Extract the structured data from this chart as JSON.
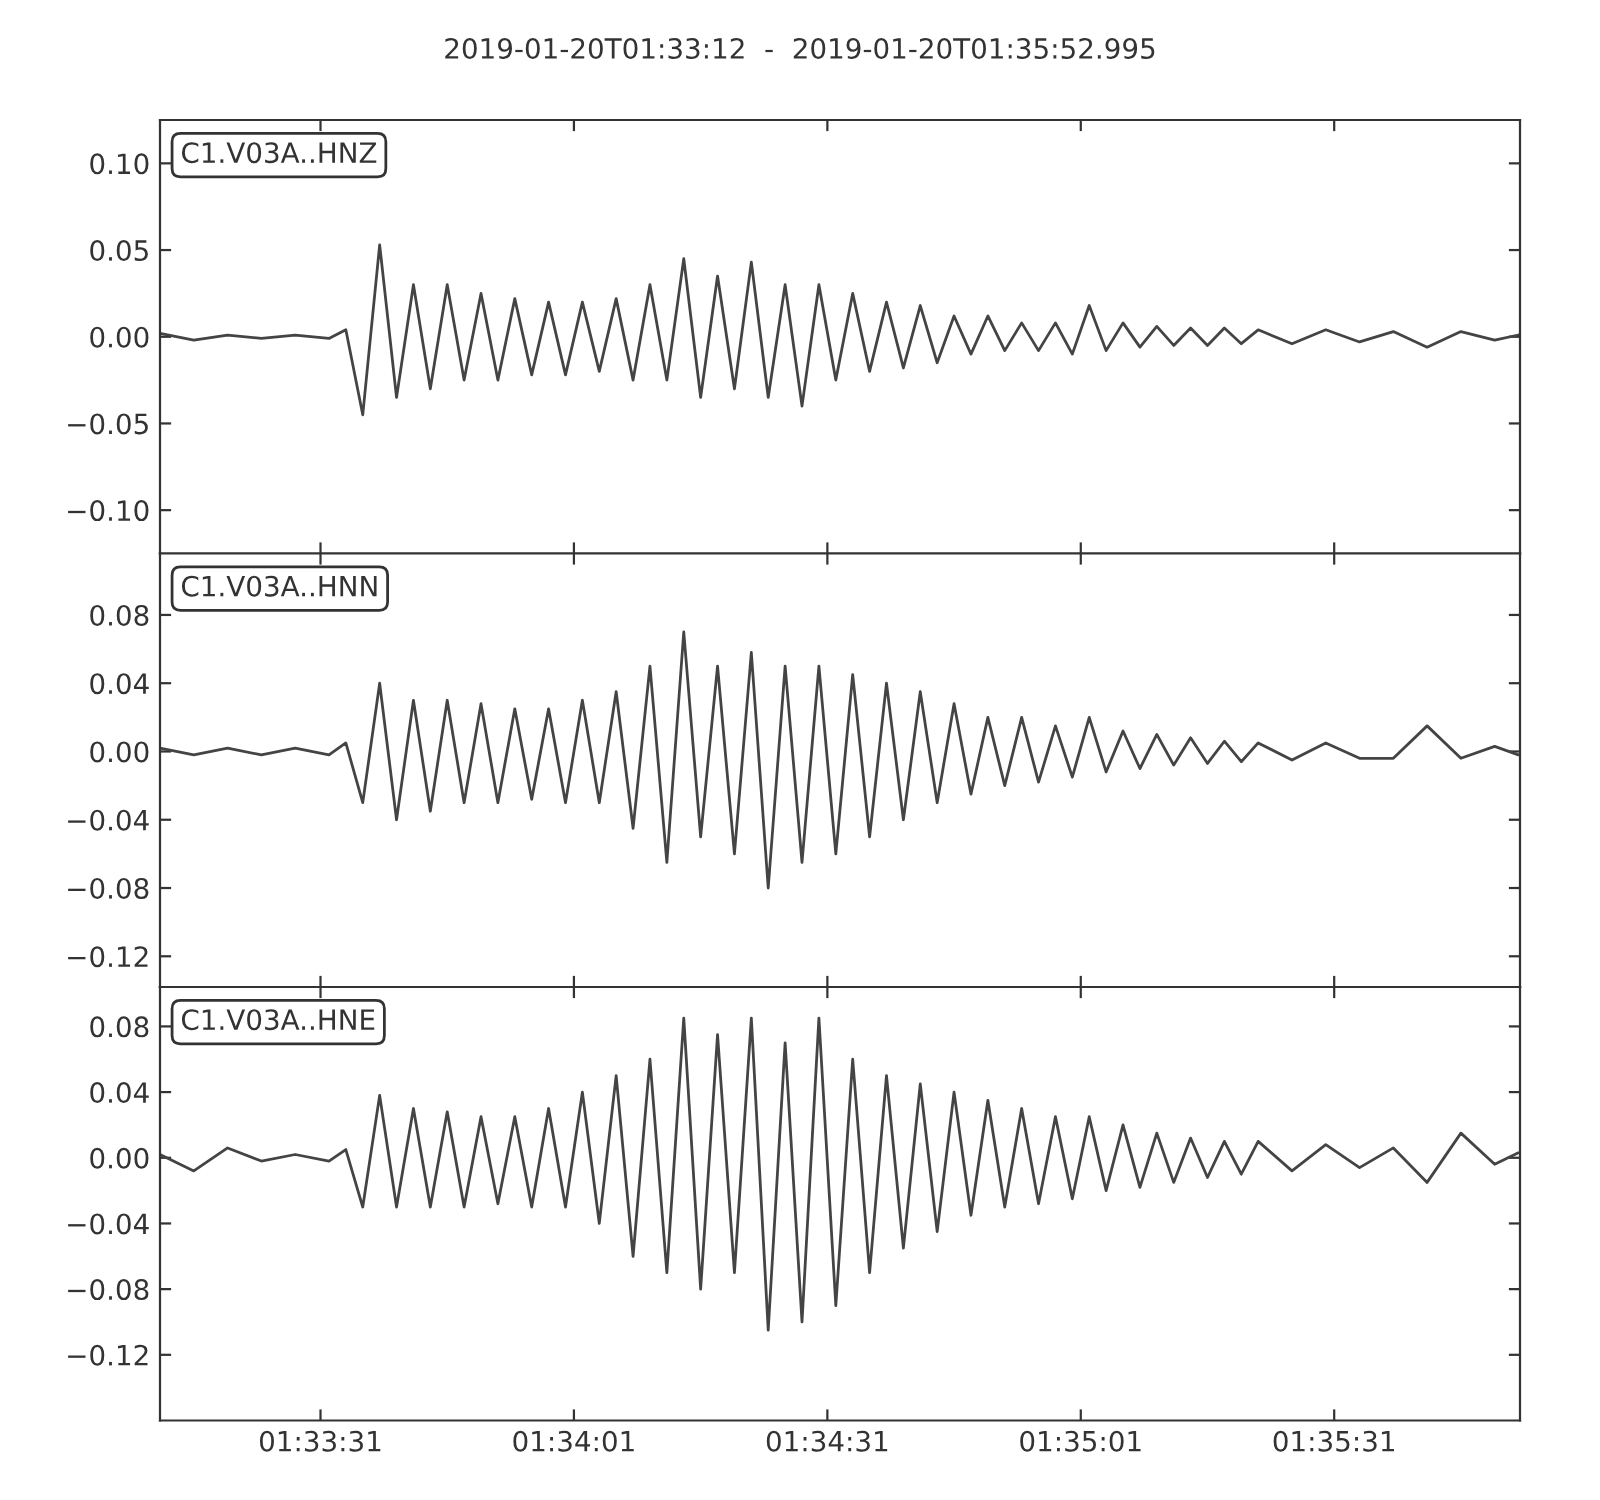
{
  "chart_data": [
    {
      "type": "line",
      "title": "2019-01-20T01:33:12  -  2019-01-20T01:35:52.995",
      "x": [
        1.553333,
        1.554444,
        1.555556,
        1.556667,
        1.557778,
        1.558889,
        1.559444,
        1.56,
        1.560556,
        1.561111,
        1.561667,
        1.562222,
        1.562778,
        1.563333,
        1.563889,
        1.564444,
        1.565,
        1.565556,
        1.566111,
        1.566667,
        1.567222,
        1.567778,
        1.568333,
        1.568889,
        1.569444,
        1.57,
        1.570556,
        1.571111,
        1.571667,
        1.572222,
        1.572778,
        1.573333,
        1.573889,
        1.574444,
        1.575,
        1.575556,
        1.576111,
        1.576667,
        1.577222,
        1.577778,
        1.578333,
        1.578889,
        1.579444,
        1.58,
        1.580556,
        1.581111,
        1.581667,
        1.582222,
        1.582778,
        1.583333,
        1.583889,
        1.584444,
        1.585,
        1.585556,
        1.586111,
        1.586667,
        1.587222,
        1.587778,
        1.588333,
        1.588889,
        1.589444,
        1.590556,
        1.591667,
        1.592778,
        1.593889,
        1.595,
        1.596111,
        1.597222,
        1.598
      ],
      "series": [
        {
          "name": "C1.V03A..HNZ",
          "color": "#444444",
          "values": [
            0.002,
            -0.002,
            0.001,
            -0.001,
            0.001,
            -0.001,
            0.004,
            -0.045,
            0.053,
            -0.035,
            0.03,
            -0.03,
            0.03,
            -0.025,
            0.025,
            -0.025,
            0.022,
            -0.022,
            0.02,
            -0.022,
            0.02,
            -0.02,
            0.022,
            -0.025,
            0.03,
            -0.025,
            0.045,
            -0.035,
            0.035,
            -0.03,
            0.043,
            -0.035,
            0.03,
            -0.04,
            0.03,
            -0.025,
            0.025,
            -0.02,
            0.02,
            -0.018,
            0.018,
            -0.015,
            0.012,
            -0.01,
            0.012,
            -0.008,
            0.008,
            -0.008,
            0.008,
            -0.01,
            0.018,
            -0.008,
            0.008,
            -0.006,
            0.006,
            -0.005,
            0.005,
            -0.005,
            0.005,
            -0.004,
            0.004,
            -0.004,
            0.004,
            -0.003,
            0.003,
            -0.006,
            0.003,
            -0.002,
            0.001
          ]
        }
      ],
      "xlim": [
        1.553333,
        1.598054
      ],
      "xticks": [
        {
          "value": 1.558611,
          "label": null
        },
        {
          "value": 1.566944,
          "label": null
        },
        {
          "value": 1.575278,
          "label": null
        },
        {
          "value": 1.583611,
          "label": null
        },
        {
          "value": 1.591944,
          "label": null
        }
      ],
      "ylim": [
        -0.125,
        0.125
      ],
      "yticks": [
        {
          "value": -0.1,
          "label": "−0.10"
        },
        {
          "value": -0.05,
          "label": "−0.05"
        },
        {
          "value": 0,
          "label": "0.00"
        },
        {
          "value": 0.05,
          "label": "0.05"
        },
        {
          "value": 0.1,
          "label": "0.10"
        }
      ],
      "tick_labels": "y",
      "grid": false,
      "legend": false,
      "line_style": "solid",
      "marker": "none"
    },
    {
      "type": "line",
      "x": [
        1.553333,
        1.554444,
        1.555556,
        1.556667,
        1.557778,
        1.558889,
        1.559444,
        1.56,
        1.560556,
        1.561111,
        1.561667,
        1.562222,
        1.562778,
        1.563333,
        1.563889,
        1.564444,
        1.565,
        1.565556,
        1.566111,
        1.566667,
        1.567222,
        1.567778,
        1.568333,
        1.568889,
        1.569444,
        1.57,
        1.570556,
        1.571111,
        1.571667,
        1.572222,
        1.572778,
        1.573333,
        1.573889,
        1.574444,
        1.575,
        1.575556,
        1.576111,
        1.576667,
        1.577222,
        1.577778,
        1.578333,
        1.578889,
        1.579444,
        1.58,
        1.580556,
        1.581111,
        1.581667,
        1.582222,
        1.582778,
        1.583333,
        1.583889,
        1.584444,
        1.585,
        1.585556,
        1.586111,
        1.586667,
        1.587222,
        1.587778,
        1.588333,
        1.588889,
        1.589444,
        1.590556,
        1.591667,
        1.592778,
        1.593889,
        1.595,
        1.596111,
        1.597222,
        1.598
      ],
      "series": [
        {
          "name": "C1.V03A..HNN",
          "color": "#444444",
          "values": [
            0.002,
            -0.002,
            0.002,
            -0.002,
            0.002,
            -0.002,
            0.005,
            -0.03,
            0.04,
            -0.04,
            0.03,
            -0.035,
            0.03,
            -0.03,
            0.028,
            -0.03,
            0.025,
            -0.028,
            0.025,
            -0.03,
            0.03,
            -0.03,
            0.035,
            -0.045,
            0.05,
            -0.065,
            0.07,
            -0.05,
            0.05,
            -0.06,
            0.058,
            -0.08,
            0.05,
            -0.065,
            0.05,
            -0.06,
            0.045,
            -0.05,
            0.04,
            -0.04,
            0.035,
            -0.03,
            0.028,
            -0.025,
            0.02,
            -0.02,
            0.02,
            -0.018,
            0.015,
            -0.015,
            0.02,
            -0.012,
            0.012,
            -0.01,
            0.01,
            -0.008,
            0.008,
            -0.007,
            0.006,
            -0.006,
            0.005,
            -0.005,
            0.005,
            -0.004,
            -0.004,
            0.015,
            -0.004,
            0.003,
            -0.002
          ]
        }
      ],
      "xlim": [
        1.553333,
        1.598054
      ],
      "xticks": [
        {
          "value": 1.558611,
          "label": null
        },
        {
          "value": 1.566944,
          "label": null
        },
        {
          "value": 1.575278,
          "label": null
        },
        {
          "value": 1.583611,
          "label": null
        },
        {
          "value": 1.591944,
          "label": null
        }
      ],
      "ylim": [
        -0.138,
        0.116
      ],
      "yticks": [
        {
          "value": -0.12,
          "label": "−0.12"
        },
        {
          "value": -0.08,
          "label": "−0.08"
        },
        {
          "value": -0.04,
          "label": "−0.04"
        },
        {
          "value": 0,
          "label": "0.00"
        },
        {
          "value": 0.04,
          "label": "0.04"
        },
        {
          "value": 0.08,
          "label": "0.08"
        }
      ],
      "tick_labels": "y",
      "grid": false,
      "legend": false,
      "line_style": "solid",
      "marker": "none"
    },
    {
      "type": "line",
      "x": [
        1.553333,
        1.554444,
        1.555556,
        1.556667,
        1.557778,
        1.558889,
        1.559444,
        1.56,
        1.560556,
        1.561111,
        1.561667,
        1.562222,
        1.562778,
        1.563333,
        1.563889,
        1.564444,
        1.565,
        1.565556,
        1.566111,
        1.566667,
        1.567222,
        1.567778,
        1.568333,
        1.568889,
        1.569444,
        1.57,
        1.570556,
        1.571111,
        1.571667,
        1.572222,
        1.572778,
        1.573333,
        1.573889,
        1.574444,
        1.575,
        1.575556,
        1.576111,
        1.576667,
        1.577222,
        1.577778,
        1.578333,
        1.578889,
        1.579444,
        1.58,
        1.580556,
        1.581111,
        1.581667,
        1.582222,
        1.582778,
        1.583333,
        1.583889,
        1.584444,
        1.585,
        1.585556,
        1.586111,
        1.586667,
        1.587222,
        1.587778,
        1.588333,
        1.588889,
        1.589444,
        1.590556,
        1.591667,
        1.592778,
        1.593889,
        1.595,
        1.596111,
        1.597222,
        1.598
      ],
      "series": [
        {
          "name": "C1.V03A..HNE",
          "color": "#444444",
          "values": [
            0.002,
            -0.008,
            0.006,
            -0.002,
            0.002,
            -0.002,
            0.005,
            -0.03,
            0.038,
            -0.03,
            0.03,
            -0.03,
            0.028,
            -0.03,
            0.025,
            -0.028,
            0.025,
            -0.03,
            0.03,
            -0.03,
            0.04,
            -0.04,
            0.05,
            -0.06,
            0.06,
            -0.07,
            0.085,
            -0.08,
            0.075,
            -0.07,
            0.085,
            -0.105,
            0.07,
            -0.1,
            0.085,
            -0.09,
            0.06,
            -0.07,
            0.05,
            -0.055,
            0.045,
            -0.045,
            0.04,
            -0.035,
            0.035,
            -0.03,
            0.03,
            -0.028,
            0.025,
            -0.025,
            0.025,
            -0.02,
            0.02,
            -0.018,
            0.015,
            -0.015,
            0.012,
            -0.012,
            0.01,
            -0.01,
            0.01,
            -0.008,
            0.008,
            -0.006,
            0.006,
            -0.015,
            0.015,
            -0.004,
            0.003
          ]
        }
      ],
      "xlim": [
        1.553333,
        1.598054
      ],
      "xticks": [
        {
          "value": 1.558611,
          "label": "01:33:31"
        },
        {
          "value": 1.566944,
          "label": "01:34:01"
        },
        {
          "value": 1.575278,
          "label": "01:34:31"
        },
        {
          "value": 1.583611,
          "label": "01:35:01"
        },
        {
          "value": 1.591944,
          "label": "01:35:31"
        }
      ],
      "ylim": [
        -0.16,
        0.104
      ],
      "yticks": [
        {
          "value": -0.12,
          "label": "−0.12"
        },
        {
          "value": -0.08,
          "label": "−0.08"
        },
        {
          "value": -0.04,
          "label": "−0.04"
        },
        {
          "value": 0,
          "label": "0.00"
        },
        {
          "value": 0.04,
          "label": "0.04"
        },
        {
          "value": 0.08,
          "label": "0.08"
        }
      ],
      "grid": false,
      "legend": false,
      "line_style": "solid",
      "marker": "none"
    }
  ]
}
